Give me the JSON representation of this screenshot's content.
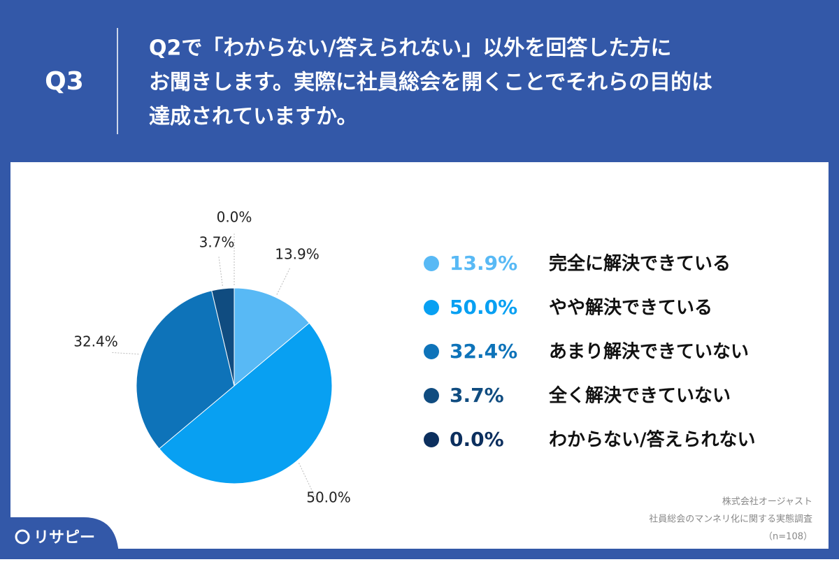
{
  "chart_data": {
    "type": "pie",
    "question": "Q3",
    "title": [
      "Q2で「わからない/答えられない」以外を回答した方に",
      "お聞きします。実際に社員総会を開くことでそれらの目的は",
      "達成されていますか。"
    ],
    "categories": [
      "完全に解決できている",
      "やや解決できている",
      "あまり解決できていない",
      "全く解決できていない",
      "わからない/答えられない"
    ],
    "values": [
      13.9,
      50.0,
      32.4,
      3.7,
      0.0
    ],
    "value_labels": [
      "13.9%",
      "50.0%",
      "32.4%",
      "3.7%",
      "0.0%"
    ],
    "colors": [
      "#58b9f5",
      "#08a0f2",
      "#0e73b9",
      "#104c80",
      "#0c2f5e"
    ],
    "source": [
      "株式会社オージャスト",
      "社員総会のマンネリ化に関する実態調査",
      "（n=108）"
    ],
    "logo": "リサピー"
  }
}
